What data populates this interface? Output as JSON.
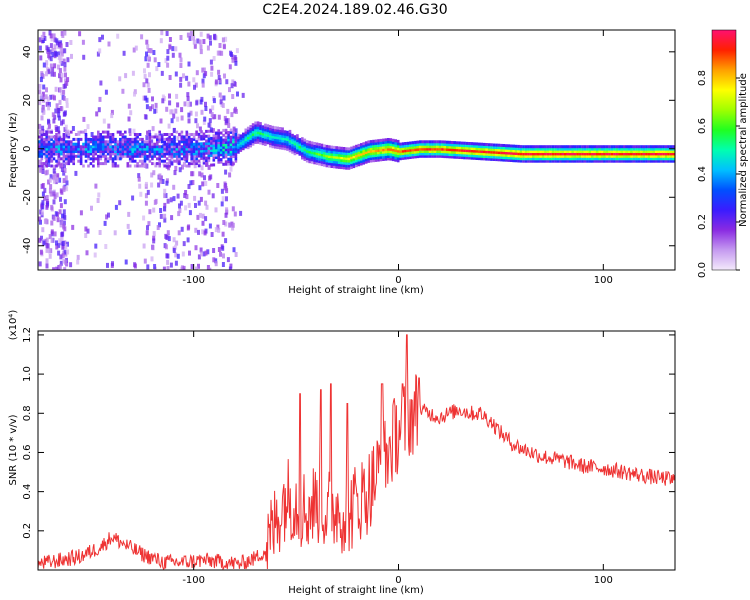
{
  "title": "C2E4.2024.189.02.46.G30",
  "chart_data": [
    {
      "type": "heatmap",
      "xlabel": "Height of straight line (km)",
      "ylabel": "Frequency (Hz)",
      "xlim": [
        -176,
        135
      ],
      "ylim": [
        -50,
        49
      ],
      "x_ticks": [
        "-100",
        "0",
        "100"
      ],
      "y_ticks": [
        "40",
        "20",
        "0",
        "-20",
        "-40"
      ],
      "colorbar": {
        "label": "Normalized spectral amplitude",
        "range": [
          0,
          1
        ],
        "ticks": [
          "0.0",
          "0.2",
          "0.4",
          "0.6",
          "0.8"
        ],
        "colors": [
          "#f4eafb",
          "#c59af0",
          "#8a2be2",
          "#3a1cff",
          "#0050ff",
          "#00c0ff",
          "#00ffb0",
          "#20ff20",
          "#a0ff00",
          "#ffff00",
          "#ffa000",
          "#ff2000",
          "#ff1070"
        ]
      },
      "ridge": {
        "description_points_x": [
          -175,
          -150,
          -125,
          -100,
          -80,
          -70,
          -62,
          -55,
          -45,
          -35,
          -25,
          -15,
          -5,
          0,
          10,
          20,
          40,
          60,
          80,
          100,
          135
        ],
        "freq_hz": [
          0,
          0,
          0,
          0,
          1,
          7,
          5,
          4,
          -1,
          -3,
          -4,
          -1,
          0,
          -1,
          0,
          0,
          -1,
          -2,
          -2,
          -2,
          -2
        ],
        "amplitude": [
          0.3,
          0.3,
          0.3,
          0.3,
          0.45,
          0.55,
          0.5,
          0.5,
          0.55,
          0.65,
          0.75,
          0.8,
          0.85,
          0.88,
          0.9,
          0.9,
          0.93,
          0.95,
          0.95,
          0.95,
          0.95
        ]
      }
    },
    {
      "type": "line",
      "xlabel": "Height of straight line (km)",
      "ylabel": "SNR (10 * v/v)",
      "y_multiplier": "(x10⁴)",
      "xlim": [
        -176,
        135
      ],
      "ylim": [
        0,
        1.22
      ],
      "x_ticks": [
        "-100",
        "0",
        "100"
      ],
      "y_ticks": [
        "1.2",
        "1.0",
        "0.8",
        "0.6",
        "0.4",
        "0.2"
      ],
      "series": [
        {
          "color": "#ee3333",
          "x": [
            -176,
            -165,
            -155,
            -145,
            -140,
            -137,
            -132,
            -125,
            -115,
            -105,
            -95,
            -85,
            -78,
            -70,
            -65,
            -62,
            -58,
            -55,
            -50,
            -45,
            -40,
            -35,
            -30,
            -25,
            -20,
            -15,
            -10,
            -5,
            0,
            5,
            10,
            15,
            20,
            25,
            30,
            35,
            40,
            45,
            50,
            55,
            60,
            70,
            80,
            90,
            100,
            110,
            120,
            135
          ],
          "y": [
            0.03,
            0.05,
            0.07,
            0.12,
            0.17,
            0.15,
            0.12,
            0.08,
            0.04,
            0.04,
            0.05,
            0.04,
            0.03,
            0.06,
            0.1,
            0.18,
            0.3,
            0.38,
            0.35,
            0.3,
            0.35,
            0.3,
            0.32,
            0.28,
            0.35,
            0.4,
            0.5,
            0.6,
            0.72,
            0.78,
            0.82,
            0.8,
            0.78,
            0.8,
            0.82,
            0.8,
            0.8,
            0.76,
            0.7,
            0.65,
            0.62,
            0.58,
            0.56,
            0.53,
            0.52,
            0.5,
            0.48,
            0.46
          ]
        }
      ],
      "spikes": [
        {
          "x": 4,
          "y": 1.2
        },
        {
          "x": -48,
          "y": 0.9
        },
        {
          "x": -38,
          "y": 0.92
        },
        {
          "x": -33,
          "y": 0.95
        },
        {
          "x": -25,
          "y": 0.85
        },
        {
          "x": -8,
          "y": 0.95
        },
        {
          "x": 2,
          "y": 0.95
        },
        {
          "x": 10,
          "y": 0.98
        }
      ]
    }
  ]
}
